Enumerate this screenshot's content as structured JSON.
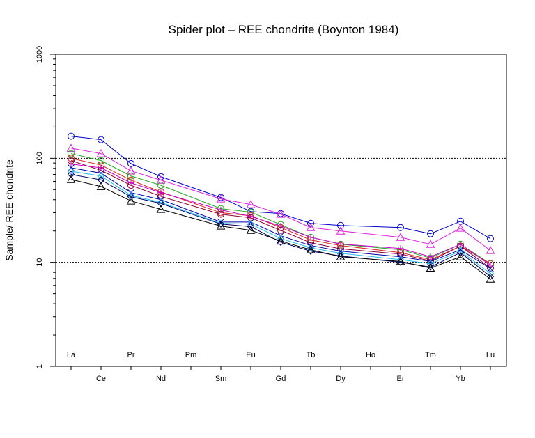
{
  "chart_data": {
    "type": "line",
    "title": "Spider plot – REE chondrite (Boynton 1984)",
    "xlabel": "",
    "ylabel": "Sample/ REE chondrite",
    "y_scale": "log",
    "ylim": [
      1,
      1000
    ],
    "y_ticks": [
      "1",
      "10",
      "100",
      "1000"
    ],
    "reference_lines": [
      10,
      100
    ],
    "grid": false,
    "categories": [
      "La",
      "Ce",
      "Pr",
      "Nd",
      "Pm",
      "Sm",
      "Eu",
      "Gd",
      "Tb",
      "Dy",
      "Ho",
      "Er",
      "Tm",
      "Yb",
      "Lu"
    ],
    "series": [
      {
        "color": "#0000cc",
        "marker": "circle",
        "values": [
          163,
          151,
          89,
          66.6,
          null,
          42,
          30.8,
          29.4,
          23.7,
          22.6,
          null,
          21.6,
          18.8,
          24.8,
          16.9
        ]
      },
      {
        "color": "#dd22dd",
        "marker": "triangle",
        "values": [
          125,
          111,
          75.6,
          61.6,
          null,
          40.7,
          36,
          29,
          21.6,
          20,
          null,
          17.4,
          14.9,
          21.3,
          13
        ]
      },
      {
        "color": "#22aa22",
        "marker": "circle",
        "values": [
          111,
          95,
          67.6,
          55,
          null,
          32.8,
          30.4,
          23,
          17.4,
          14.9,
          null,
          13.2,
          11,
          14.9,
          9.7
        ]
      },
      {
        "color": "#dd2222",
        "marker": "circle",
        "values": [
          100,
          86,
          61.6,
          47.5,
          null,
          30,
          28,
          21.6,
          16.4,
          14.5,
          null,
          12.4,
          10.6,
          14.3,
          9.7
        ]
      },
      {
        "color": "#880033",
        "marker": "circle",
        "values": [
          95,
          76.6,
          55,
          43,
          null,
          29,
          26.8,
          20.3,
          15.4,
          13.5,
          null,
          12,
          10.3,
          14.3,
          8.8
        ]
      },
      {
        "color": "#cc00cc",
        "marker": "plus",
        "values": [
          88,
          81,
          58,
          46.7,
          null,
          32,
          27.6,
          22.3,
          17.4,
          15,
          null,
          13.6,
          11.3,
          14.9,
          9.4
        ]
      },
      {
        "color": "#0000aa",
        "marker": "x",
        "values": [
          81,
          72,
          46.7,
          40,
          null,
          24.4,
          24.4,
          18,
          14.5,
          12.8,
          null,
          11.3,
          10.2,
          13.2,
          8.7
        ]
      },
      {
        "color": "#22bbee",
        "marker": "diamond",
        "values": [
          75,
          67.6,
          43.9,
          37.7,
          null,
          23.7,
          23.3,
          16.9,
          13.8,
          12.2,
          null,
          10.6,
          9.7,
          12.8,
          7.8
        ]
      },
      {
        "color": "#000066",
        "marker": "diamond",
        "values": [
          70,
          62,
          42.6,
          36.8,
          null,
          23.3,
          22,
          15.6,
          12.8,
          11.5,
          null,
          10,
          9,
          12.4,
          7.3
        ]
      },
      {
        "color": "#000000",
        "marker": "triangle",
        "values": [
          62.6,
          53.5,
          38.9,
          32.3,
          null,
          22.3,
          20.3,
          16,
          13.2,
          11.3,
          null,
          10.2,
          8.8,
          11.3,
          6.9
        ]
      }
    ]
  }
}
